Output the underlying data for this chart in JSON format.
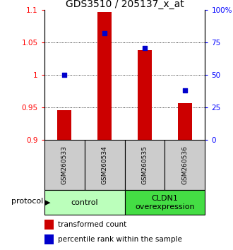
{
  "title": "GDS3510 / 205137_x_at",
  "samples": [
    "GSM260533",
    "GSM260534",
    "GSM260535",
    "GSM260536"
  ],
  "transformed_counts": [
    0.946,
    1.097,
    1.038,
    0.957
  ],
  "percentile_ranks": [
    50,
    82,
    71,
    38
  ],
  "bar_bottom": 0.9,
  "ylim_left": [
    0.9,
    1.1
  ],
  "ylim_right": [
    0,
    100
  ],
  "yticks_left": [
    0.9,
    0.95,
    1.0,
    1.05,
    1.1
  ],
  "yticks_right": [
    0,
    25,
    50,
    75,
    100
  ],
  "ytick_labels_left": [
    "0.9",
    "0.95",
    "1",
    "1.05",
    "1.1"
  ],
  "ytick_labels_right": [
    "0",
    "25",
    "50",
    "75",
    "100%"
  ],
  "grid_yticks": [
    0.95,
    1.0,
    1.05
  ],
  "bar_color": "#cc0000",
  "dot_color": "#0000cc",
  "bar_width": 0.35,
  "groups": [
    {
      "label": "control",
      "samples": [
        0,
        1
      ],
      "color": "#bbffbb"
    },
    {
      "label": "CLDN1\noverexpression",
      "samples": [
        2,
        3
      ],
      "color": "#44dd44"
    }
  ],
  "protocol_label": "protocol",
  "legend_bar_label": "transformed count",
  "legend_dot_label": "percentile rank within the sample",
  "sample_bgcolor": "#cccccc",
  "title_fontsize": 10,
  "tick_fontsize": 7.5,
  "sample_fontsize": 6.5,
  "group_fontsize": 8,
  "legend_fontsize": 7.5
}
